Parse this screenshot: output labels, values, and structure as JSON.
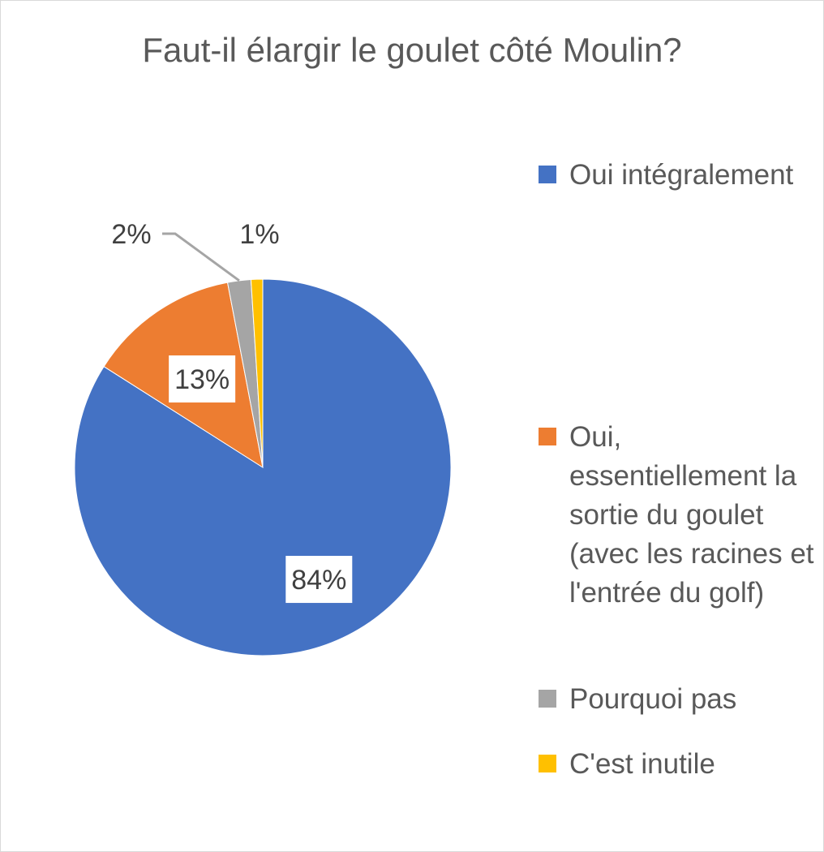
{
  "chart_data": {
    "type": "pie",
    "title": "Faut-il élargir le goulet côté Moulin?",
    "categories": [
      "Oui intégralement",
      "Oui, essentiellement la sortie du goulet (avec les racines et l'entrée du golf)",
      "Pourquoi pas",
      "C'est inutile"
    ],
    "values": [
      84,
      13,
      2,
      1
    ],
    "data_labels": [
      "84%",
      "13%",
      "2%",
      "1%"
    ],
    "colors": [
      "#4472c4",
      "#ed7d31",
      "#a5a5a5",
      "#ffc000"
    ],
    "start_angle_deg": 0,
    "direction": "clockwise",
    "legend_position": "right"
  },
  "legend": {
    "items": [
      {
        "label": "Oui intégralement",
        "color": "#4472c4"
      },
      {
        "label": "Oui, essentiellement la sortie du goulet (avec les racines et l'entrée du golf)",
        "color": "#ed7d31"
      },
      {
        "label": "Pourquoi pas",
        "color": "#a5a5a5"
      },
      {
        "label": "C'est inutile",
        "color": "#ffc000"
      }
    ]
  }
}
